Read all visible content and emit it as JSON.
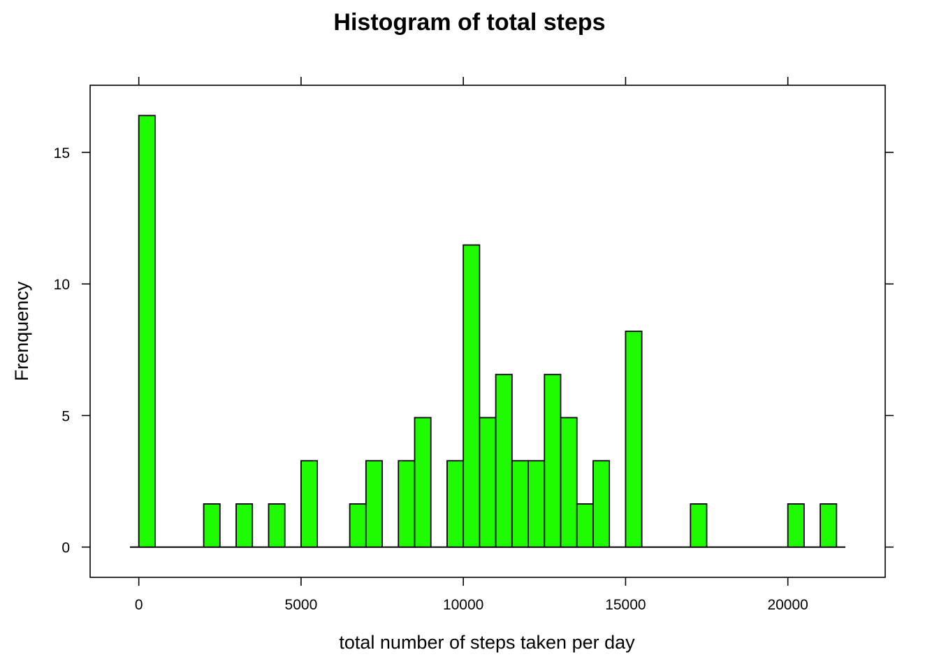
{
  "chart_data": {
    "type": "bar",
    "title": "Histogram of total steps",
    "xlabel": "total number of steps taken per day",
    "ylabel": "Frenquency",
    "xlim": [
      -1500,
      23000
    ],
    "ylim": [
      -1.15,
      17.55
    ],
    "x_ticks": [
      "0",
      "5000",
      "10000",
      "15000",
      "20000"
    ],
    "y_ticks": [
      "0",
      "5",
      "10",
      "15"
    ],
    "bin_width": 500,
    "bins": [
      {
        "start": 0,
        "end": 500,
        "value": 16.4
      },
      {
        "start": 2000,
        "end": 2500,
        "value": 1.64
      },
      {
        "start": 3000,
        "end": 3500,
        "value": 1.64
      },
      {
        "start": 4000,
        "end": 4500,
        "value": 1.64
      },
      {
        "start": 5000,
        "end": 5500,
        "value": 3.28
      },
      {
        "start": 6500,
        "end": 7000,
        "value": 1.64
      },
      {
        "start": 7000,
        "end": 7500,
        "value": 3.28
      },
      {
        "start": 8000,
        "end": 8500,
        "value": 3.28
      },
      {
        "start": 8500,
        "end": 9000,
        "value": 4.92
      },
      {
        "start": 9500,
        "end": 10000,
        "value": 3.28
      },
      {
        "start": 10000,
        "end": 10500,
        "value": 11.48
      },
      {
        "start": 10500,
        "end": 11000,
        "value": 4.92
      },
      {
        "start": 11000,
        "end": 11500,
        "value": 6.56
      },
      {
        "start": 11500,
        "end": 12000,
        "value": 3.28
      },
      {
        "start": 12000,
        "end": 12500,
        "value": 3.28
      },
      {
        "start": 12500,
        "end": 13000,
        "value": 6.56
      },
      {
        "start": 13000,
        "end": 13500,
        "value": 4.92
      },
      {
        "start": 13500,
        "end": 14000,
        "value": 1.64
      },
      {
        "start": 14000,
        "end": 14500,
        "value": 3.28
      },
      {
        "start": 15000,
        "end": 15500,
        "value": 8.2
      },
      {
        "start": 17000,
        "end": 17500,
        "value": 1.64
      },
      {
        "start": 20000,
        "end": 20500,
        "value": 1.64
      },
      {
        "start": 21000,
        "end": 21500,
        "value": 1.64
      }
    ],
    "bar_color": "#1ffc00",
    "bar_outline": "#000000",
    "grid": false
  }
}
